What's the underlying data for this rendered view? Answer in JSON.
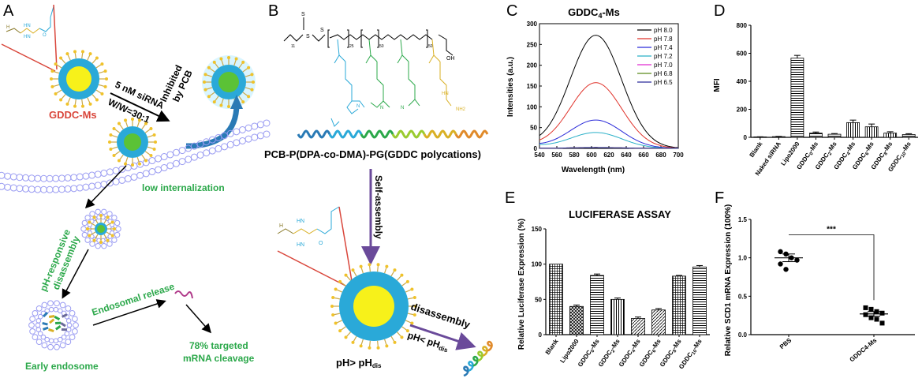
{
  "panels": {
    "A": {
      "letter": "A",
      "gddc_label": "GDDC-Ms",
      "sirna_line1": "5 nM siRNA",
      "sirna_line2": "W/W=30:1",
      "inhibited_line1": "Inhibited",
      "inhibited_line2": "by PCB",
      "low_internalization": "low  internalization",
      "ph_line1": "pH-responsive",
      "ph_line2": "disassembly",
      "endosomal_release": "Endosomal release",
      "early_endosome": "Early endosome",
      "targeted_line1": "78% targeted",
      "targeted_line2": "mRNA cleavage",
      "colors": {
        "green": "#2ba84a",
        "red": "#d9463b",
        "membrane": "#9a9cf2",
        "shell": "#2aa9d8",
        "core_yellow": "#f7f11a",
        "core_green": "#5bc236"
      }
    },
    "B": {
      "letter": "B",
      "sub_11": "11",
      "sub_25": "25",
      "sub_50": "50",
      "sub_50b": "50",
      "oh": "OH",
      "nh2": "NH2",
      "hn": "HN",
      "caption": "PCB-P(DPA-co-DMA)-PG(GDDC polycations)",
      "self_assembly": "Self-assembly",
      "disassembly": "disassembly",
      "ph_gt": "pH> pH",
      "ph_lt": "pH< pH",
      "dis": "dis",
      "dis2": "dis"
    },
    "C": {
      "letter": "C"
    },
    "D": {
      "letter": "D"
    },
    "E": {
      "letter": "E"
    },
    "F": {
      "letter": "F"
    }
  },
  "chart_data": [
    {
      "id": "C",
      "type": "line",
      "title": "GDDC4-Ms",
      "title_main": "GDDC",
      "title_sub": "4",
      "title_rest": "-Ms",
      "xlabel": "Wavelength (nm)",
      "ylabel": "Intensities (a.u.)",
      "xlim": [
        540,
        700
      ],
      "ylim": [
        0,
        300
      ],
      "xticks": [
        540,
        560,
        580,
        600,
        620,
        640,
        660,
        680,
        700
      ],
      "yticks": [
        0,
        50,
        100,
        150,
        200,
        250,
        300
      ],
      "legend_position": "top-right",
      "series": [
        {
          "name": "pH 8.0",
          "color": "#000000",
          "peak": 272,
          "x0": 605
        },
        {
          "name": "pH 7.8",
          "color": "#e0332b",
          "peak": 158,
          "x0": 605
        },
        {
          "name": "pH 7.4",
          "color": "#2a2ad9",
          "peak": 68,
          "x0": 605
        },
        {
          "name": "pH 7.2",
          "color": "#2ab0c8",
          "peak": 38,
          "x0": 605
        },
        {
          "name": "pH 7.0",
          "color": "#e02ad0",
          "peak": 2,
          "x0": 605
        },
        {
          "name": "pH 6.8",
          "color": "#5a8a1a",
          "peak": 2,
          "x0": 605
        },
        {
          "name": "pH 6.5",
          "color": "#2a2a9a",
          "peak": 2,
          "x0": 605
        }
      ]
    },
    {
      "id": "D",
      "type": "bar",
      "ylabel": "MFI",
      "ylim": [
        0,
        800
      ],
      "yticks": [
        0,
        200,
        400,
        600,
        800
      ],
      "categories": [
        {
          "main": "Blank",
          "sub": "",
          "rest": ""
        },
        {
          "main": "Naked siRNA",
          "sub": "",
          "rest": ""
        },
        {
          "main": "Lipo2000",
          "sub": "",
          "rest": ""
        },
        {
          "main": "GDDC",
          "sub": "0",
          "rest": "-Ms"
        },
        {
          "main": "GDDC",
          "sub": "2",
          "rest": "-Ms"
        },
        {
          "main": "GDDC",
          "sub": "4",
          "rest": "-Ms"
        },
        {
          "main": "GDDC",
          "sub": "6",
          "rest": "-Ms"
        },
        {
          "main": "GDDC",
          "sub": "8",
          "rest": "-Ms"
        },
        {
          "main": "GDDC",
          "sub": "10",
          "rest": "-Ms"
        }
      ],
      "values": [
        3,
        5,
        565,
        30,
        22,
        105,
        75,
        30,
        20
      ],
      "errors": [
        1,
        2,
        20,
        8,
        5,
        18,
        20,
        10,
        6
      ]
    },
    {
      "id": "E",
      "type": "bar",
      "title": "LUCIFERASE ASSAY",
      "ylabel": "Relative Luciferase Expression (%)",
      "ylim": [
        0,
        150
      ],
      "yticks": [
        0,
        50,
        100,
        150
      ],
      "categories": [
        {
          "main": "Blank",
          "sub": "",
          "rest": ""
        },
        {
          "main": "Lipo2000",
          "sub": "",
          "rest": ""
        },
        {
          "main": "GDDC",
          "sub": "0",
          "rest": "-Ms"
        },
        {
          "main": "GDDC",
          "sub": "2",
          "rest": "-Ms"
        },
        {
          "main": "GDDC",
          "sub": "4",
          "rest": "-Ms"
        },
        {
          "main": "GDDC",
          "sub": "6",
          "rest": "-Ms"
        },
        {
          "main": "GDDC",
          "sub": "8",
          "rest": "-Ms"
        },
        {
          "main": "GDDC",
          "sub": "10",
          "rest": "-Ms"
        }
      ],
      "values": [
        100,
        40,
        84,
        50,
        23,
        35,
        83,
        96
      ],
      "errors": [
        0,
        2,
        2,
        2,
        2,
        2,
        1,
        2
      ]
    },
    {
      "id": "F",
      "type": "scatter",
      "ylabel": "Relative SCD1 mRNA Expression (100%)",
      "ylim": [
        0,
        1.5
      ],
      "yticks": [
        0,
        0.5,
        1.0,
        1.5
      ],
      "ytick_labels": [
        "0.0",
        "0.5",
        "1.0",
        "1.5"
      ],
      "categories": [
        "PBS",
        "GDDC4-Ms"
      ],
      "significance": "***",
      "groups": [
        {
          "name": "PBS",
          "points": [
            1.08,
            1.05,
            1.0,
            0.97,
            0.92,
            0.85
          ],
          "mean": 1.0,
          "sem": 0.05,
          "marker": "circle"
        },
        {
          "name": "GDDC4-Ms",
          "points": [
            0.35,
            0.33,
            0.3,
            0.28,
            0.26,
            0.22,
            0.2,
            0.15
          ],
          "mean": 0.27,
          "sem": 0.03,
          "marker": "square"
        }
      ]
    }
  ]
}
